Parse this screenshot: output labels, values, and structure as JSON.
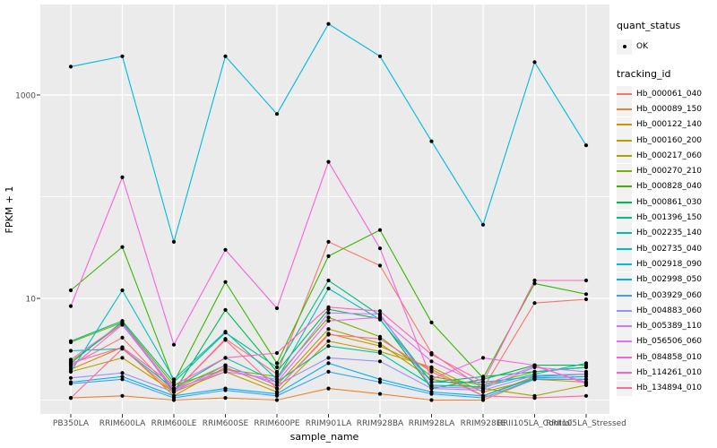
{
  "chart_data": {
    "type": "line",
    "title": "",
    "xlabel": "sample_name",
    "ylabel": "FPKM + 1",
    "y_scale": "log10",
    "ylim": [
      1,
      7000
    ],
    "y_tick_labels": [
      "1000",
      "10"
    ],
    "y_tick_values": [
      1000,
      10
    ],
    "y_minor_gridline_values": [
      100,
      1
    ],
    "grid": "white major/minor gridlines on grey panel",
    "legend_position": "right",
    "point_marker": "black dot at every data point",
    "categories": [
      "PB350LA",
      "RRIM600LA",
      "RRIM600LE",
      "RRIM600SE",
      "RRIM600PE",
      "RRIM901LA",
      "RRIM928BA",
      "RRIM928LA",
      "RRIM928LE",
      "RRII105LA_Control",
      "RRII105LA_Stressed"
    ],
    "series": [
      {
        "name": "Hb_000061_040",
        "color": "#F8766D",
        "values": [
          2.2,
          4.1,
          1.2,
          4.0,
          1.8,
          36,
          21,
          2.9,
          1.3,
          9.0,
          9.8
        ]
      },
      {
        "name": "Hb_000089_150",
        "color": "#EA8331",
        "values": [
          1.05,
          1.1,
          1.0,
          1.05,
          1.0,
          1.3,
          1.15,
          1.0,
          1.0,
          1.6,
          1.6
        ]
      },
      {
        "name": "Hb_000122_140",
        "color": "#D89000",
        "values": [
          2.0,
          3.3,
          1.1,
          2.1,
          1.3,
          4.5,
          3.4,
          2.0,
          1.1,
          1.7,
          1.8
        ]
      },
      {
        "name": "Hb_000160_200",
        "color": "#C09B00",
        "values": [
          1.9,
          2.6,
          1.2,
          1.9,
          1.2,
          3.8,
          3.0,
          2.1,
          1.2,
          1.6,
          1.5
        ]
      },
      {
        "name": "Hb_000217_060",
        "color": "#A3A500",
        "values": [
          2.4,
          5.6,
          1.3,
          2.2,
          1.4,
          5.0,
          3.6,
          1.6,
          1.3,
          1.1,
          1.4
        ]
      },
      {
        "name": "Hb_000270_210",
        "color": "#7CAE00",
        "values": [
          3.7,
          5.8,
          1.4,
          2.0,
          1.7,
          6.5,
          4.2,
          1.7,
          1.4,
          1.9,
          2.1
        ]
      },
      {
        "name": "Hb_000828_040",
        "color": "#39B600",
        "values": [
          12,
          32,
          1.5,
          14.5,
          2.3,
          26,
          47,
          5.8,
          1.65,
          14,
          11
        ]
      },
      {
        "name": "Hb_000861_030",
        "color": "#00BB4E",
        "values": [
          2.3,
          5.9,
          1.2,
          7.7,
          1.9,
          7.8,
          6.3,
          1.3,
          1.6,
          2.2,
          2.2
        ]
      },
      {
        "name": "Hb_001396_150",
        "color": "#00BF7D",
        "values": [
          3.8,
          6.0,
          1.5,
          4.6,
          2.1,
          15,
          6.8,
          1.5,
          1.7,
          1.9,
          2.1
        ]
      },
      {
        "name": "Hb_002235_140",
        "color": "#00C1A3",
        "values": [
          3.05,
          3.2,
          1.3,
          2.6,
          1.5,
          3.4,
          2.9,
          1.4,
          1.35,
          1.8,
          2.3
        ]
      },
      {
        "name": "Hb_002735_040",
        "color": "#00BFC4",
        "values": [
          1.9,
          12,
          1.6,
          4.7,
          1.6,
          12.5,
          6.2,
          1.5,
          1.5,
          1.7,
          1.8
        ]
      },
      {
        "name": "Hb_002918_090",
        "color": "#00BAE0",
        "values": [
          1900,
          2400,
          36,
          2400,
          650,
          5000,
          2400,
          350,
          53,
          2100,
          320
        ]
      },
      {
        "name": "Hb_002998_050",
        "color": "#00B0F6",
        "values": [
          1.5,
          1.7,
          1.1,
          1.3,
          1.15,
          2.3,
          1.6,
          1.2,
          1.1,
          1.65,
          1.7
        ]
      },
      {
        "name": "Hb_003929_060",
        "color": "#35A2FF",
        "values": [
          1.45,
          1.6,
          1.05,
          1.25,
          1.1,
          1.9,
          1.5,
          1.15,
          1.05,
          1.6,
          1.6
        ]
      },
      {
        "name": "Hb_004883_060",
        "color": "#9590FF",
        "values": [
          1.65,
          1.85,
          1.2,
          2.2,
          1.4,
          2.6,
          2.4,
          1.3,
          1.25,
          1.75,
          1.8
        ]
      },
      {
        "name": "Hb_005389_110",
        "color": "#C77CFF",
        "values": [
          2.5,
          5.7,
          1.3,
          1.9,
          1.6,
          7.2,
          7.0,
          1.35,
          1.3,
          2.1,
          1.9
        ]
      },
      {
        "name": "Hb_056506_060",
        "color": "#E76BF3",
        "values": [
          2.1,
          5.5,
          1.25,
          2.0,
          1.5,
          6.0,
          6.5,
          2.4,
          1.4,
          2.15,
          1.5
        ]
      },
      {
        "name": "Hb_084858_010",
        "color": "#FA62DB",
        "values": [
          8.4,
          155,
          3.5,
          30,
          8.0,
          220,
          31,
          1.6,
          2.6,
          2.2,
          1.45
        ]
      },
      {
        "name": "Hb_114261_010",
        "color": "#FF62BC",
        "values": [
          2.3,
          3.3,
          1.4,
          2.6,
          2.9,
          8.2,
          7.5,
          2.8,
          1.5,
          15,
          15
        ]
      },
      {
        "name": "Hb_134894_010",
        "color": "#FF6A98",
        "values": [
          1.05,
          3.2,
          1.2,
          3.9,
          1.3,
          4.4,
          4.0,
          1.9,
          1.1,
          1.05,
          1.1
        ]
      }
    ]
  },
  "legend": {
    "quant_status_title": "quant_status",
    "quant_status_items": [
      {
        "label": "OK",
        "marker": "black-point"
      }
    ],
    "tracking_id_title": "tracking_id"
  },
  "colors": {
    "panel_bg": "#EBEBEB",
    "gridline": "#FFFFFF",
    "legend_key_bg": "#F2F2F2",
    "tick_label": "#4D4D4D",
    "axis_title": "#000000",
    "point": "#000000"
  }
}
